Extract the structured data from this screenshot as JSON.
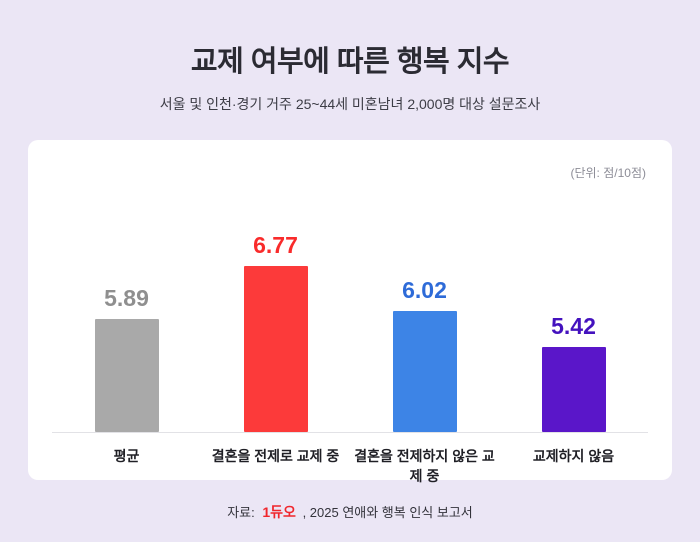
{
  "header": {
    "title": "교제 여부에 따른 행복 지수",
    "subtitle": "서울 및 인천·경기 거주 25~44세 미혼남녀 2,000명 대상 설문조사"
  },
  "card": {
    "unit_note": "(단위: 점/10점)"
  },
  "chart_data": {
    "type": "bar",
    "title": "교제 여부에 따른 행복 지수",
    "unit": "점/10점",
    "categories": [
      "평균",
      "결혼을 전제로 교제 중",
      "결혼을 전제하지 않은 교제 중",
      "교제하지 않음"
    ],
    "values": [
      5.89,
      6.77,
      6.02,
      5.42
    ],
    "value_labels": [
      "5.89",
      "6.77",
      "6.02",
      "5.42"
    ],
    "bar_colors": [
      "#a9a9a9",
      "#fc3a3a",
      "#3d84e6",
      "#5a16c9"
    ],
    "value_label_colors": [
      "#8f8f8f",
      "#f92b2b",
      "#2e6bd8",
      "#4412be"
    ],
    "ylim": [
      0,
      10
    ],
    "grid": false,
    "legend": false
  },
  "footer": {
    "source_prefix": "자료:",
    "source_logo": "1듀오",
    "source_suffix": ", 2025 연애와 행복 인식 보고서"
  }
}
